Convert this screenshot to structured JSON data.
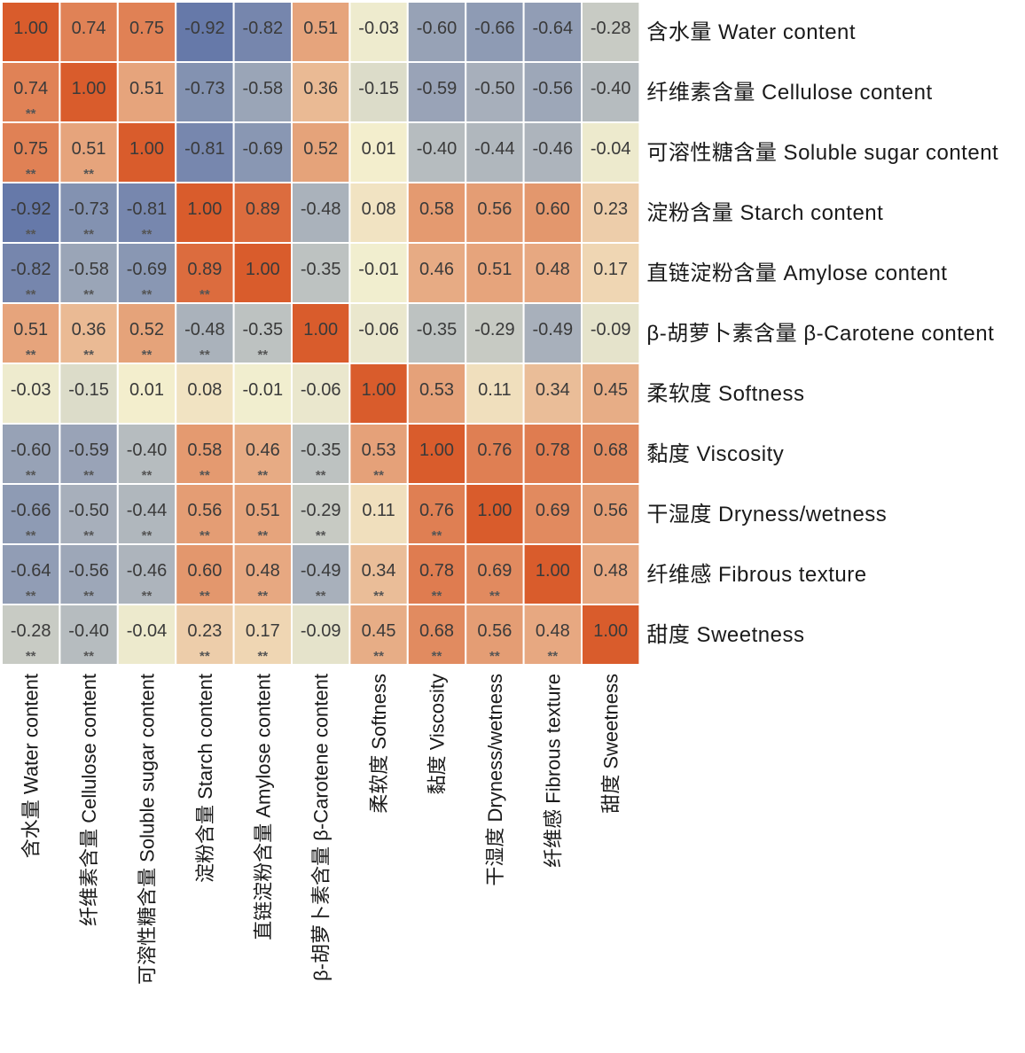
{
  "chart_data": {
    "type": "heatmap",
    "title": "",
    "row_labels": [
      "含水量 Water content",
      "纤维素含量 Cellulose content",
      "可溶性糖含量 Soluble sugar content",
      "淀粉含量 Starch content",
      "直链淀粉含量 Amylose content",
      "β-胡萝卜素含量 β-Carotene content",
      "柔软度 Softness",
      "黏度 Viscosity",
      "干湿度 Dryness/wetness",
      "纤维感 Fibrous texture",
      "甜度 Sweetness"
    ],
    "col_labels": [
      "含水量 Water content",
      "纤维素含量 Cellulose content",
      "可溶性糖含量 Soluble sugar content",
      "淀粉含量 Starch content",
      "直链淀粉含量 Amylose content",
      "β-胡萝卜素含量 β-Carotene content",
      "柔软度 Softness",
      "黏度 Viscosity",
      "干湿度 Dryness/wetness",
      "纤维感 Fibrous texture",
      "甜度 Sweetness"
    ],
    "values": [
      [
        "1.00",
        "0.74",
        "0.75",
        "-0.92",
        "-0.82",
        "0.51",
        "-0.03",
        "-0.60",
        "-0.66",
        "-0.64",
        "-0.28"
      ],
      [
        "0.74",
        "1.00",
        "0.51",
        "-0.73",
        "-0.58",
        "0.36",
        "-0.15",
        "-0.59",
        "-0.50",
        "-0.56",
        "-0.40"
      ],
      [
        "0.75",
        "0.51",
        "1.00",
        "-0.81",
        "-0.69",
        "0.52",
        "0.01",
        "-0.40",
        "-0.44",
        "-0.46",
        "-0.04"
      ],
      [
        "-0.92",
        "-0.73",
        "-0.81",
        "1.00",
        "0.89",
        "-0.48",
        "0.08",
        "0.58",
        "0.56",
        "0.60",
        "0.23"
      ],
      [
        "-0.82",
        "-0.58",
        "-0.69",
        "0.89",
        "1.00",
        "-0.35",
        "-0.01",
        "0.46",
        "0.51",
        "0.48",
        "0.17"
      ],
      [
        "0.51",
        "0.36",
        "0.52",
        "-0.48",
        "-0.35",
        "1.00",
        "-0.06",
        "-0.35",
        "-0.29",
        "-0.49",
        "-0.09"
      ],
      [
        "-0.03",
        "-0.15",
        "0.01",
        "0.08",
        "-0.01",
        "-0.06",
        "1.00",
        "0.53",
        "0.11",
        "0.34",
        "0.45"
      ],
      [
        "-0.60",
        "-0.59",
        "-0.40",
        "0.58",
        "0.46",
        "-0.35",
        "0.53",
        "1.00",
        "0.76",
        "0.78",
        "0.68"
      ],
      [
        "-0.66",
        "-0.50",
        "-0.44",
        "0.56",
        "0.51",
        "-0.29",
        "0.11",
        "0.76",
        "1.00",
        "0.69",
        "0.56"
      ],
      [
        "-0.64",
        "-0.56",
        "-0.46",
        "0.60",
        "0.48",
        "-0.49",
        "0.34",
        "0.78",
        "0.69",
        "1.00",
        "0.48"
      ],
      [
        "-0.28",
        "-0.40",
        "-0.04",
        "0.23",
        "0.17",
        "-0.09",
        "0.45",
        "0.68",
        "0.56",
        "0.48",
        "1.00"
      ]
    ],
    "significance_marker": "**",
    "significant": [
      [
        0,
        0,
        0,
        0,
        0,
        0,
        0,
        0,
        0,
        0,
        0
      ],
      [
        1,
        0,
        0,
        0,
        0,
        0,
        0,
        0,
        0,
        0,
        0
      ],
      [
        1,
        1,
        0,
        0,
        0,
        0,
        0,
        0,
        0,
        0,
        0
      ],
      [
        1,
        1,
        1,
        0,
        0,
        0,
        0,
        0,
        0,
        0,
        0
      ],
      [
        1,
        1,
        1,
        1,
        0,
        0,
        0,
        0,
        0,
        0,
        0
      ],
      [
        1,
        1,
        1,
        1,
        1,
        0,
        0,
        0,
        0,
        0,
        0
      ],
      [
        0,
        0,
        0,
        0,
        0,
        0,
        0,
        0,
        0,
        0,
        0
      ],
      [
        1,
        1,
        1,
        1,
        1,
        1,
        1,
        0,
        0,
        0,
        0
      ],
      [
        1,
        1,
        1,
        1,
        1,
        1,
        0,
        1,
        0,
        0,
        0
      ],
      [
        1,
        1,
        1,
        1,
        1,
        1,
        1,
        1,
        1,
        0,
        0
      ],
      [
        1,
        1,
        0,
        1,
        1,
        0,
        1,
        1,
        1,
        1,
        0
      ]
    ],
    "color_scale": {
      "min": -1,
      "max": 1,
      "colors": [
        "#5a6fa6",
        "#f3efcf",
        "#d95c2c"
      ]
    },
    "legend": "none"
  }
}
